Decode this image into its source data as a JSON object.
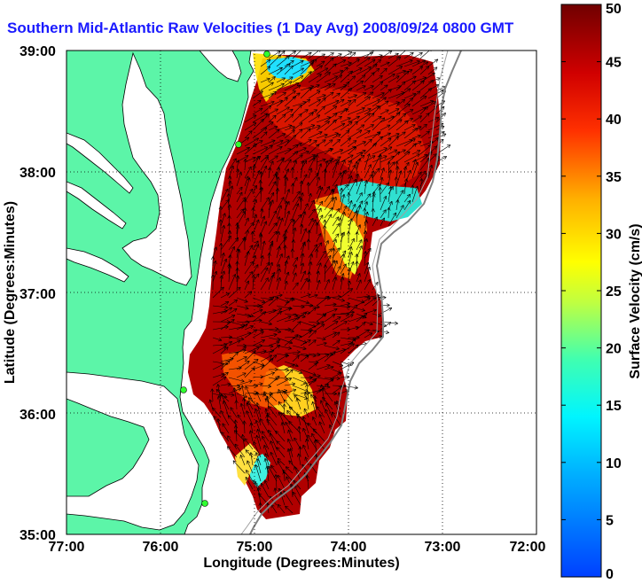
{
  "title": "Southern Mid-Atlantic Raw Velocities (1 Day Avg) 2008/09/24 0800 GMT",
  "map": {
    "xlabel": "Longitude (Degrees:Minutes)",
    "ylabel": "Latitude (Degrees:Minutes)",
    "x_ticks": [
      "77:00",
      "76:00",
      "75:00",
      "74:00",
      "73:00",
      "72:00"
    ],
    "y_ticks": [
      "39:00",
      "38:00",
      "37:00",
      "36:00",
      "35:00"
    ],
    "land_color": "#5cf5a8",
    "grid": "dotted"
  },
  "colorbar": {
    "label": "Surface Velocity (cm/s)",
    "ticks": [
      "50",
      "45",
      "40",
      "35",
      "30",
      "25",
      "20",
      "15",
      "10",
      "5",
      "0"
    ],
    "min": 0,
    "max": 50
  }
}
